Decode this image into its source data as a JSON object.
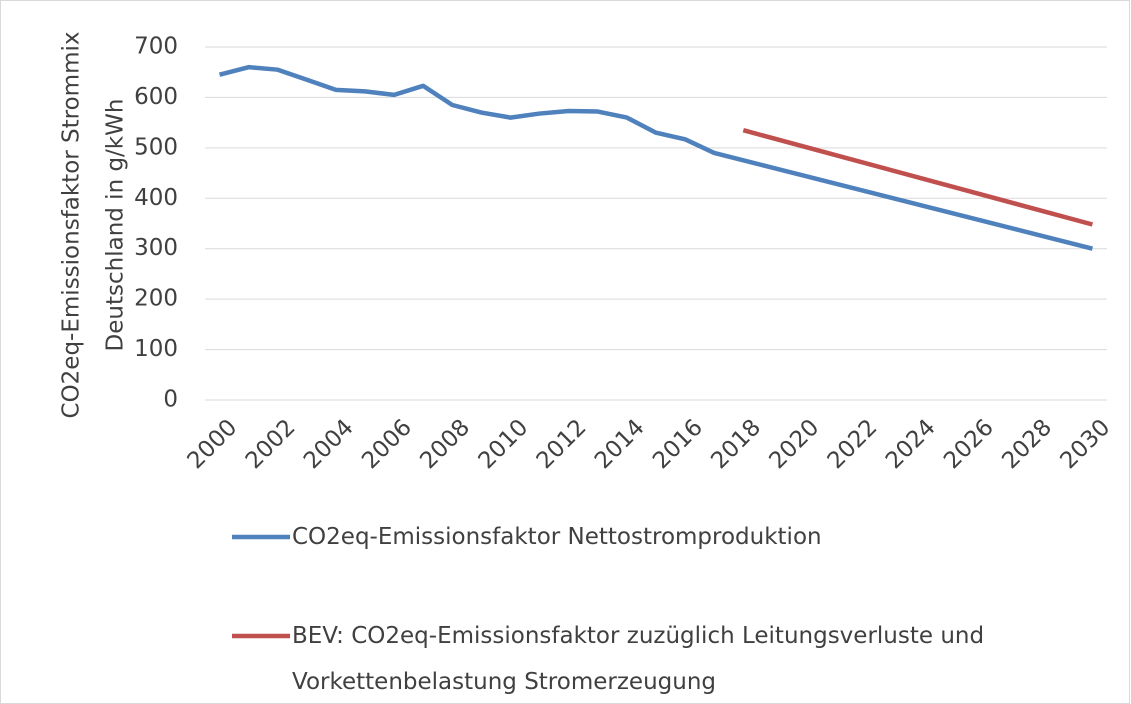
{
  "chart_data": {
    "type": "line",
    "ylabel": [
      "CO2eq-Emissionsfaktor Strommix",
      "Deutschland in g/kWh"
    ],
    "xlim": [
      1999.5,
      2030.5
    ],
    "xticks": [
      2000,
      2002,
      2004,
      2006,
      2008,
      2010,
      2012,
      2014,
      2016,
      2018,
      2020,
      2022,
      2024,
      2026,
      2028,
      2030
    ],
    "ylim": [
      0,
      700
    ],
    "yticks": [
      0,
      100,
      200,
      300,
      400,
      500,
      600,
      700
    ],
    "grid": true,
    "series": [
      {
        "name": "CO2eq-Emissionsfaktor Nettostromproduktion",
        "color": "#4f81bd",
        "x": [
          2000,
          2001,
          2002,
          2003,
          2004,
          2005,
          2006,
          2007,
          2008,
          2009,
          2010,
          2011,
          2012,
          2013,
          2014,
          2015,
          2016,
          2017,
          2030
        ],
        "values": [
          645,
          660,
          655,
          635,
          615,
          612,
          605,
          623,
          585,
          570,
          560,
          568,
          573,
          572,
          560,
          530,
          517,
          490,
          300
        ]
      },
      {
        "name": "BEV: CO2eq-Emissionsfaktor zuzüglich Leitungsverluste und Vorkettenbelastung Stromerzeugung",
        "color": "#c0504d",
        "x": [
          2018,
          2030
        ],
        "values": [
          535,
          348
        ]
      }
    ]
  }
}
